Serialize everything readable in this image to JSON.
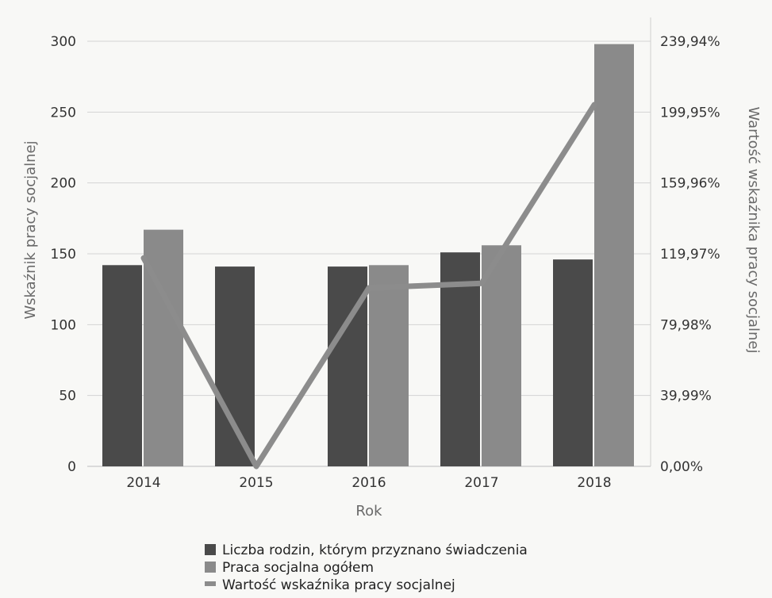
{
  "chart_data": {
    "type": "bar",
    "categories": [
      "2014",
      "2015",
      "2016",
      "2017",
      "2018"
    ],
    "series": [
      {
        "name": "Liczba rodzin, którym przyznano świadczenia",
        "kind": "bar",
        "axis": "left",
        "color": "#4a4a4a",
        "values": [
          142,
          141,
          141,
          151,
          146
        ]
      },
      {
        "name": "Praca socjalna ogółem",
        "kind": "bar",
        "axis": "left",
        "color": "#8a8a8a",
        "values": [
          167,
          0,
          142,
          156,
          298
        ]
      }
    ],
    "line": {
      "name": "Wartość wskaźnika pracy socjalnej",
      "kind": "line",
      "axis": "right",
      "color": "#8c8c8c",
      "values": [
        117.6,
        0,
        100.7,
        103.3,
        204.1
      ]
    },
    "xlabel": "Rok",
    "ylabel": "Wskaźnik pracy socjalnej",
    "ylabel_right": "Wartość wskaźnika pracy socjalnej",
    "ylim": [
      0,
      300
    ],
    "yticks": [
      "0",
      "50",
      "100",
      "150",
      "200",
      "250",
      "300"
    ],
    "ylim_right": [
      0,
      239.94
    ],
    "yticks_right": [
      "0,00%",
      "39,99%",
      "79,98%",
      "119,97%",
      "159,96%",
      "199,95%",
      "239,94%"
    ],
    "grid": true,
    "legend_position": "bottom"
  }
}
